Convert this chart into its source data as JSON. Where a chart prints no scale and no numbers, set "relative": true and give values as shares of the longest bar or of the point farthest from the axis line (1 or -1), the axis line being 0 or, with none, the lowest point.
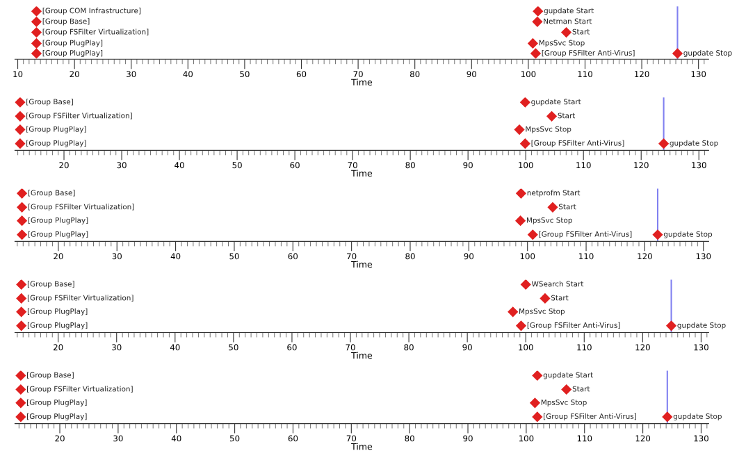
{
  "chart_data": [
    {
      "type": "scatter",
      "relative": true,
      "xlabel": "Time",
      "marker": "diamond",
      "xlim": [
        9.5,
        131.8
      ],
      "xticks": [
        10,
        20,
        30,
        40,
        50,
        60,
        70,
        80,
        90,
        100,
        110,
        120,
        130
      ],
      "series": [
        {
          "color": "#e02020",
          "x": [
            13.3,
            13.3,
            13.3,
            13.3,
            13.3,
            101.7,
            101.6,
            106.7,
            100.8,
            101.3,
            126.3
          ],
          "values": [
            1,
            0.78,
            0.56,
            0.33,
            0.12,
            1,
            0.78,
            0.56,
            0.33,
            0.12,
            0.12
          ]
        }
      ],
      "ref_lines": [
        {
          "axis": "x",
          "value": 126.3,
          "color": "#8080f0"
        }
      ],
      "annotations": [
        {
          "text": "[Group COM Infrastructure]",
          "x": 13.3,
          "y": 1
        },
        {
          "text": "[Group Base]",
          "x": 13.3,
          "y": 0.78
        },
        {
          "text": "[Group FSFilter Virtualization]",
          "x": 13.3,
          "y": 0.56
        },
        {
          "text": "[Group PlugPlay]",
          "x": 13.3,
          "y": 0.33
        },
        {
          "text": "[Group PlugPlay]",
          "x": 13.3,
          "y": 0.12
        },
        {
          "text": "gupdate Start",
          "x": 101.7,
          "y": 1
        },
        {
          "text": "Netman Start",
          "x": 101.6,
          "y": 0.78
        },
        {
          "text": "Start",
          "x": 106.7,
          "y": 0.56
        },
        {
          "text": "MpsSvc Stop",
          "x": 100.8,
          "y": 0.33
        },
        {
          "text": "[Group FSFilter Anti-Virus]",
          "x": 101.3,
          "y": 0.12
        },
        {
          "text": "gupdate Stop",
          "x": 126.3,
          "y": 0.12
        }
      ]
    },
    {
      "type": "scatter",
      "relative": true,
      "xlabel": "Time",
      "marker": "diamond",
      "xlim": [
        11.5,
        131.7
      ],
      "xticks": [
        20,
        30,
        40,
        50,
        60,
        70,
        80,
        90,
        100,
        110,
        120,
        130
      ],
      "series": [
        {
          "color": "#e02020",
          "x": [
            12.4,
            12.4,
            12.4,
            12.4,
            99.9,
            104.5,
            98.9,
            99.9,
            123.9
          ],
          "values": [
            1,
            0.71,
            0.43,
            0.14,
            1,
            0.71,
            0.43,
            0.14,
            0.14
          ]
        }
      ],
      "ref_lines": [
        {
          "axis": "x",
          "value": 123.9,
          "color": "#8080f0"
        }
      ],
      "annotations": [
        {
          "text": "[Group Base]",
          "x": 12.4,
          "y": 1
        },
        {
          "text": "[Group FSFilter Virtualization]",
          "x": 12.4,
          "y": 0.71
        },
        {
          "text": "[Group PlugPlay]",
          "x": 12.4,
          "y": 0.43
        },
        {
          "text": "[Group PlugPlay]",
          "x": 12.4,
          "y": 0.14
        },
        {
          "text": "gupdate Start",
          "x": 99.9,
          "y": 1
        },
        {
          "text": "Start",
          "x": 104.5,
          "y": 0.71
        },
        {
          "text": "MpsSvc Stop",
          "x": 98.9,
          "y": 0.43
        },
        {
          "text": "[Group FSFilter Anti-Virus]",
          "x": 99.9,
          "y": 0.14
        },
        {
          "text": "gupdate Stop",
          "x": 123.9,
          "y": 0.14
        }
      ]
    },
    {
      "type": "scatter",
      "relative": true,
      "xlabel": "Time",
      "marker": "diamond",
      "xlim": [
        12.6,
        130.9
      ],
      "xticks": [
        20,
        30,
        40,
        50,
        60,
        70,
        80,
        90,
        100,
        110,
        120,
        130
      ],
      "series": [
        {
          "color": "#e02020",
          "x": [
            13.8,
            13.8,
            13.8,
            13.8,
            98.9,
            104.3,
            98.8,
            100.9,
            122.2
          ],
          "values": [
            1,
            0.71,
            0.43,
            0.14,
            1,
            0.71,
            0.43,
            0.14,
            0.14
          ]
        }
      ],
      "ref_lines": [
        {
          "axis": "x",
          "value": 122.2,
          "color": "#8080f0"
        }
      ],
      "annotations": [
        {
          "text": "[Group Base]",
          "x": 13.8,
          "y": 1
        },
        {
          "text": "[Group FSFilter Virtualization]",
          "x": 13.8,
          "y": 0.71
        },
        {
          "text": "[Group PlugPlay]",
          "x": 13.8,
          "y": 0.43
        },
        {
          "text": "[Group PlugPlay]",
          "x": 13.8,
          "y": 0.14
        },
        {
          "text": "netprofm Start",
          "x": 98.9,
          "y": 1
        },
        {
          "text": "Start",
          "x": 104.3,
          "y": 0.71
        },
        {
          "text": "MpsSvc Stop",
          "x": 98.8,
          "y": 0.43
        },
        {
          "text": "[Group FSFilter Anti-Virus]",
          "x": 100.9,
          "y": 0.14
        },
        {
          "text": "gupdate Stop",
          "x": 122.2,
          "y": 0.14
        }
      ]
    },
    {
      "type": "scatter",
      "relative": true,
      "xlabel": "Time",
      "marker": "diamond",
      "xlim": [
        12.6,
        131.3
      ],
      "xticks": [
        20,
        30,
        40,
        50,
        60,
        70,
        80,
        90,
        100,
        110,
        120,
        130
      ],
      "series": [
        {
          "color": "#e02020",
          "x": [
            13.7,
            13.7,
            13.7,
            13.7,
            100.0,
            103.3,
            97.8,
            99.2,
            124.9
          ],
          "values": [
            1,
            0.71,
            0.43,
            0.14,
            1,
            0.71,
            0.43,
            0.14,
            0.14
          ]
        }
      ],
      "ref_lines": [
        {
          "axis": "x",
          "value": 124.9,
          "color": "#8080f0"
        }
      ],
      "annotations": [
        {
          "text": "[Group Base]",
          "x": 13.7,
          "y": 1
        },
        {
          "text": "[Group FSFilter Virtualization]",
          "x": 13.7,
          "y": 0.71
        },
        {
          "text": "[Group PlugPlay]",
          "x": 13.7,
          "y": 0.43
        },
        {
          "text": "[Group PlugPlay]",
          "x": 13.7,
          "y": 0.14
        },
        {
          "text": "WSearch Start",
          "x": 100.0,
          "y": 1
        },
        {
          "text": "Start",
          "x": 103.3,
          "y": 0.71
        },
        {
          "text": "MpsSvc Stop",
          "x": 97.8,
          "y": 0.43
        },
        {
          "text": "[Group FSFilter Anti-Virus]",
          "x": 99.2,
          "y": 0.14
        },
        {
          "text": "gupdate Stop",
          "x": 124.9,
          "y": 0.14
        }
      ]
    },
    {
      "type": "scatter",
      "relative": true,
      "xlabel": "Time",
      "marker": "diamond",
      "xlim": [
        12.3,
        131.3
      ],
      "xticks": [
        20,
        30,
        40,
        50,
        60,
        70,
        80,
        90,
        100,
        110,
        120,
        130
      ],
      "series": [
        {
          "color": "#e02020",
          "x": [
            13.3,
            13.3,
            13.3,
            13.3,
            101.9,
            106.9,
            101.5,
            101.9,
            124.2
          ],
          "values": [
            1,
            0.71,
            0.43,
            0.14,
            1,
            0.71,
            0.43,
            0.14,
            0.14
          ]
        }
      ],
      "ref_lines": [
        {
          "axis": "x",
          "value": 124.2,
          "color": "#8080f0"
        }
      ],
      "annotations": [
        {
          "text": "[Group Base]",
          "x": 13.3,
          "y": 1
        },
        {
          "text": "[Group FSFilter Virtualization]",
          "x": 13.3,
          "y": 0.71
        },
        {
          "text": "[Group PlugPlay]",
          "x": 13.3,
          "y": 0.43
        },
        {
          "text": "[Group PlugPlay]",
          "x": 13.3,
          "y": 0.14
        },
        {
          "text": "gupdate Start",
          "x": 101.9,
          "y": 1
        },
        {
          "text": "Start",
          "x": 106.9,
          "y": 0.71
        },
        {
          "text": "MpsSvc Stop",
          "x": 101.5,
          "y": 0.43
        },
        {
          "text": "[Group FSFilter Anti-Virus]",
          "x": 101.9,
          "y": 0.14
        },
        {
          "text": "gupdate Stop",
          "x": 124.2,
          "y": 0.14
        }
      ]
    }
  ]
}
